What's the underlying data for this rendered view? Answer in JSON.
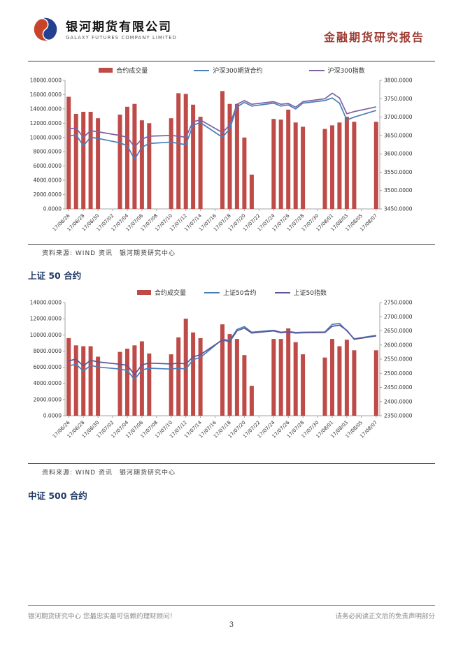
{
  "header": {
    "company_cn": "银河期货有限公司",
    "company_en": "GALAXY FUTURES COMPANY LIMITED",
    "report_title": "金融期货研究报告"
  },
  "colors": {
    "accent_red": "#9e3b32",
    "heading_blue": "#1f3864",
    "bar_red": "#be4b48",
    "line_blue": "#4a7ebb",
    "line_purple": "#7e62a1",
    "line_slate": "#5d5596"
  },
  "source_note": "资料来源: WIND 资讯　银河期货研究中心",
  "headings": {
    "sse50": "上证 50 合约",
    "csi500": "中证 500 合约"
  },
  "footer": {
    "left": "银河期货研究中心 您最忠实最可信赖的理财顾问！",
    "right": "请务必阅读正文后的免责声明部分",
    "page": "3"
  },
  "chart_data": [
    {
      "type": "bar",
      "name": "hs300-volume-and-price",
      "legend": [
        "合约成交量",
        "沪深300期货合约",
        "沪深300指数"
      ],
      "colors": {
        "bar": "#be4b48",
        "futures": "#4a7ebb",
        "index": "#7e62a1"
      },
      "left_axis": {
        "min": 0,
        "max": 18000,
        "step": 2000,
        "decimals": 4
      },
      "right_axis": {
        "min": 3450,
        "max": 3800,
        "step": 50,
        "decimals": 4
      },
      "total_days": 43,
      "x_label_step_days": 2,
      "x_labels": [
        "17/06/26",
        "17/06/28",
        "17/06/30",
        "17/07/02",
        "17/07/04",
        "17/07/06",
        "17/07/08",
        "17/07/10",
        "17/07/12",
        "17/07/14",
        "17/07/16",
        "17/07/18",
        "17/07/20",
        "17/07/22",
        "17/07/24",
        "17/07/26",
        "17/07/28",
        "17/07/30",
        "17/08/01",
        "17/08/03",
        "17/08/05",
        "17/08/07"
      ],
      "days": [
        {
          "date": "17/06/26",
          "d": 0,
          "volume": 15700,
          "futures": 3648,
          "index": 3668
        },
        {
          "date": "17/06/27",
          "d": 1,
          "volume": 13300,
          "futures": 3652,
          "index": 3670
        },
        {
          "date": "17/06/28",
          "d": 2,
          "volume": 13600,
          "futures": 3622,
          "index": 3645
        },
        {
          "date": "17/06/29",
          "d": 3,
          "volume": 13600,
          "futures": 3645,
          "index": 3663
        },
        {
          "date": "17/06/30",
          "d": 4,
          "volume": 12700,
          "futures": 3642,
          "index": 3660
        },
        {
          "date": "17/07/03",
          "d": 7,
          "volume": 13200,
          "futures": 3630,
          "index": 3650
        },
        {
          "date": "17/07/04",
          "d": 8,
          "volume": 14300,
          "futures": 3622,
          "index": 3645
        },
        {
          "date": "17/07/05",
          "d": 9,
          "volume": 14700,
          "futures": 3585,
          "index": 3619
        },
        {
          "date": "17/07/06",
          "d": 10,
          "volume": 12400,
          "futures": 3618,
          "index": 3640
        },
        {
          "date": "17/07/07",
          "d": 11,
          "volume": 12000,
          "futures": 3628,
          "index": 3648
        },
        {
          "date": "17/07/10",
          "d": 14,
          "volume": 12700,
          "futures": 3632,
          "index": 3650
        },
        {
          "date": "17/07/11",
          "d": 15,
          "volume": 16200,
          "futures": 3628,
          "index": 3648
        },
        {
          "date": "17/07/12",
          "d": 16,
          "volume": 16100,
          "futures": 3625,
          "index": 3645
        },
        {
          "date": "17/07/13",
          "d": 17,
          "volume": 14600,
          "futures": 3678,
          "index": 3688
        },
        {
          "date": "17/07/14",
          "d": 18,
          "volume": 12900,
          "futures": 3685,
          "index": 3692
        },
        {
          "date": "17/07/17",
          "d": 21,
          "volume": 16500,
          "futures": 3645,
          "index": 3658
        },
        {
          "date": "17/07/18",
          "d": 22,
          "volume": 14700,
          "futures": 3668,
          "index": 3678
        },
        {
          "date": "17/07/19",
          "d": 23,
          "volume": 14700,
          "futures": 3728,
          "index": 3735
        },
        {
          "date": "17/07/20",
          "d": 24,
          "volume": 10000,
          "futures": 3740,
          "index": 3745
        },
        {
          "date": "17/07/21",
          "d": 25,
          "volume": 4800,
          "futures": 3730,
          "index": 3735
        },
        {
          "date": "17/07/24",
          "d": 28,
          "volume": 12600,
          "futures": 3738,
          "index": 3742
        },
        {
          "date": "17/07/25",
          "d": 29,
          "volume": 12500,
          "futures": 3730,
          "index": 3735
        },
        {
          "date": "17/07/26",
          "d": 30,
          "volume": 13900,
          "futures": 3733,
          "index": 3737
        },
        {
          "date": "17/07/27",
          "d": 31,
          "volume": 12100,
          "futures": 3722,
          "index": 3727
        },
        {
          "date": "17/07/28",
          "d": 32,
          "volume": 11500,
          "futures": 3738,
          "index": 3742
        },
        {
          "date": "17/07/31",
          "d": 35,
          "volume": 11200,
          "futures": 3745,
          "index": 3750
        },
        {
          "date": "17/08/01",
          "d": 36,
          "volume": 11700,
          "futures": 3752,
          "index": 3765
        },
        {
          "date": "17/08/02",
          "d": 37,
          "volume": 12100,
          "futures": 3738,
          "index": 3752
        },
        {
          "date": "17/08/03",
          "d": 38,
          "volume": 12900,
          "futures": 3692,
          "index": 3709
        },
        {
          "date": "17/08/04",
          "d": 39,
          "volume": 12200,
          "futures": 3700,
          "index": 3715
        },
        {
          "date": "17/08/07",
          "d": 42,
          "volume": 12200,
          "futures": 3718,
          "index": 3728
        }
      ]
    },
    {
      "type": "bar",
      "name": "sse50-volume-and-price",
      "legend": [
        "合约成交量",
        "上证50合约",
        "上证50指数"
      ],
      "colors": {
        "bar": "#be4b48",
        "futures": "#4a7ebb",
        "index": "#5d5596"
      },
      "left_axis": {
        "min": 0,
        "max": 14000,
        "step": 2000,
        "decimals": 4
      },
      "right_axis": {
        "min": 2350,
        "max": 2750,
        "step": 50,
        "decimals": 4
      },
      "total_days": 43,
      "x_label_step_days": 2,
      "x_labels": [
        "17/06/26",
        "17/06/28",
        "17/06/30",
        "17/07/02",
        "17/07/04",
        "17/07/06",
        "17/07/08",
        "17/07/10",
        "17/07/12",
        "17/07/14",
        "17/07/16",
        "17/07/18",
        "17/07/20",
        "17/07/22",
        "17/07/24",
        "17/07/26",
        "17/07/28",
        "17/07/30",
        "17/08/01",
        "17/08/03",
        "17/08/05",
        "17/08/07"
      ],
      "days": [
        {
          "date": "17/06/26",
          "d": 0,
          "volume": 9600,
          "futures": 2526,
          "index": 2544
        },
        {
          "date": "17/06/27",
          "d": 1,
          "volume": 8700,
          "futures": 2532,
          "index": 2550
        },
        {
          "date": "17/06/28",
          "d": 2,
          "volume": 8600,
          "futures": 2508,
          "index": 2526
        },
        {
          "date": "17/06/29",
          "d": 3,
          "volume": 8600,
          "futures": 2528,
          "index": 2546
        },
        {
          "date": "17/06/30",
          "d": 4,
          "volume": 7300,
          "futures": 2522,
          "index": 2540
        },
        {
          "date": "17/07/03",
          "d": 7,
          "volume": 7900,
          "futures": 2515,
          "index": 2532
        },
        {
          "date": "17/07/04",
          "d": 8,
          "volume": 8300,
          "futures": 2510,
          "index": 2528
        },
        {
          "date": "17/07/05",
          "d": 9,
          "volume": 8700,
          "futures": 2478,
          "index": 2495
        },
        {
          "date": "17/07/06",
          "d": 10,
          "volume": 9200,
          "futures": 2512,
          "index": 2530
        },
        {
          "date": "17/07/07",
          "d": 11,
          "volume": 7700,
          "futures": 2518,
          "index": 2536
        },
        {
          "date": "17/07/10",
          "d": 14,
          "volume": 7600,
          "futures": 2515,
          "index": 2533
        },
        {
          "date": "17/07/11",
          "d": 15,
          "volume": 9700,
          "futures": 2518,
          "index": 2536
        },
        {
          "date": "17/07/12",
          "d": 16,
          "volume": 12000,
          "futures": 2515,
          "index": 2533
        },
        {
          "date": "17/07/13",
          "d": 17,
          "volume": 10300,
          "futures": 2548,
          "index": 2558
        },
        {
          "date": "17/07/14",
          "d": 18,
          "volume": 9600,
          "futures": 2556,
          "index": 2566
        },
        {
          "date": "17/07/17",
          "d": 21,
          "volume": 11300,
          "futures": 2620,
          "index": 2618
        },
        {
          "date": "17/07/18",
          "d": 22,
          "volume": 10100,
          "futures": 2616,
          "index": 2612
        },
        {
          "date": "17/07/19",
          "d": 23,
          "volume": 9500,
          "futures": 2655,
          "index": 2650
        },
        {
          "date": "17/07/20",
          "d": 24,
          "volume": 7500,
          "futures": 2665,
          "index": 2660
        },
        {
          "date": "17/07/21",
          "d": 25,
          "volume": 3700,
          "futures": 2645,
          "index": 2642
        },
        {
          "date": "17/07/24",
          "d": 28,
          "volume": 9500,
          "futures": 2652,
          "index": 2650
        },
        {
          "date": "17/07/25",
          "d": 29,
          "volume": 9500,
          "futures": 2645,
          "index": 2643
        },
        {
          "date": "17/07/26",
          "d": 30,
          "volume": 10800,
          "futures": 2648,
          "index": 2646
        },
        {
          "date": "17/07/27",
          "d": 31,
          "volume": 9100,
          "futures": 2644,
          "index": 2642
        },
        {
          "date": "17/07/28",
          "d": 32,
          "volume": 7600,
          "futures": 2645,
          "index": 2643
        },
        {
          "date": "17/07/31",
          "d": 35,
          "volume": 7200,
          "futures": 2646,
          "index": 2644
        },
        {
          "date": "17/08/01",
          "d": 36,
          "volume": 9500,
          "futures": 2673,
          "index": 2666
        },
        {
          "date": "17/08/02",
          "d": 37,
          "volume": 8600,
          "futures": 2676,
          "index": 2670
        },
        {
          "date": "17/08/03",
          "d": 38,
          "volume": 9400,
          "futures": 2650,
          "index": 2652
        },
        {
          "date": "17/08/04",
          "d": 39,
          "volume": 8100,
          "futures": 2622,
          "index": 2620
        },
        {
          "date": "17/08/07",
          "d": 42,
          "volume": 8100,
          "futures": 2634,
          "index": 2632
        }
      ]
    }
  ]
}
